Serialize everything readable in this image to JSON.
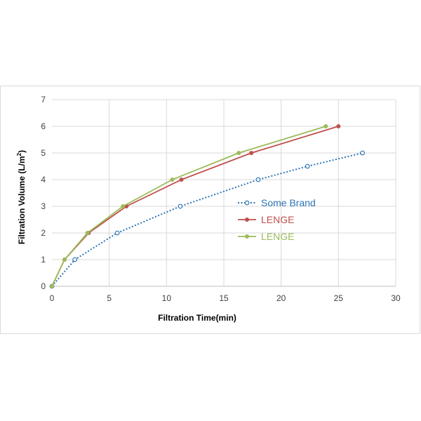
{
  "chart_data": {
    "type": "line",
    "title": "",
    "xlabel": "Filtration Time(min)",
    "ylabel_main": "Filtration Volume (L/m",
    "ylabel_sup": "2",
    "ylabel_end": ")",
    "xlim": [
      0,
      30
    ],
    "ylim": [
      0,
      7
    ],
    "xticks": [
      0,
      5,
      10,
      15,
      20,
      25,
      30
    ],
    "yticks": [
      0,
      1,
      2,
      3,
      4,
      5,
      6,
      7
    ],
    "grid": true,
    "legend_position": "center-right",
    "series": [
      {
        "name": "Some Brand",
        "color": "#2e75b6",
        "style": "dotted",
        "marker": "open-circle",
        "x": [
          0,
          2,
          5.7,
          11.2,
          18,
          22.3,
          27.1
        ],
        "y": [
          0,
          1,
          2,
          3,
          4,
          4.5,
          5
        ]
      },
      {
        "name": "LENGE",
        "color": "#c0504d",
        "style": "solid",
        "marker": "filled-circle",
        "x": [
          0,
          1.1,
          3.2,
          6.5,
          11.3,
          17.4,
          25
        ],
        "y": [
          0,
          1,
          2,
          3,
          4,
          5,
          6
        ]
      },
      {
        "name": "LENGE",
        "color": "#9bbb59",
        "style": "solid",
        "marker": "filled-circle",
        "x": [
          0,
          1.1,
          3.1,
          6.2,
          10.5,
          16.3,
          23.9
        ],
        "y": [
          0,
          1,
          2,
          3,
          4,
          5,
          6
        ]
      }
    ]
  }
}
